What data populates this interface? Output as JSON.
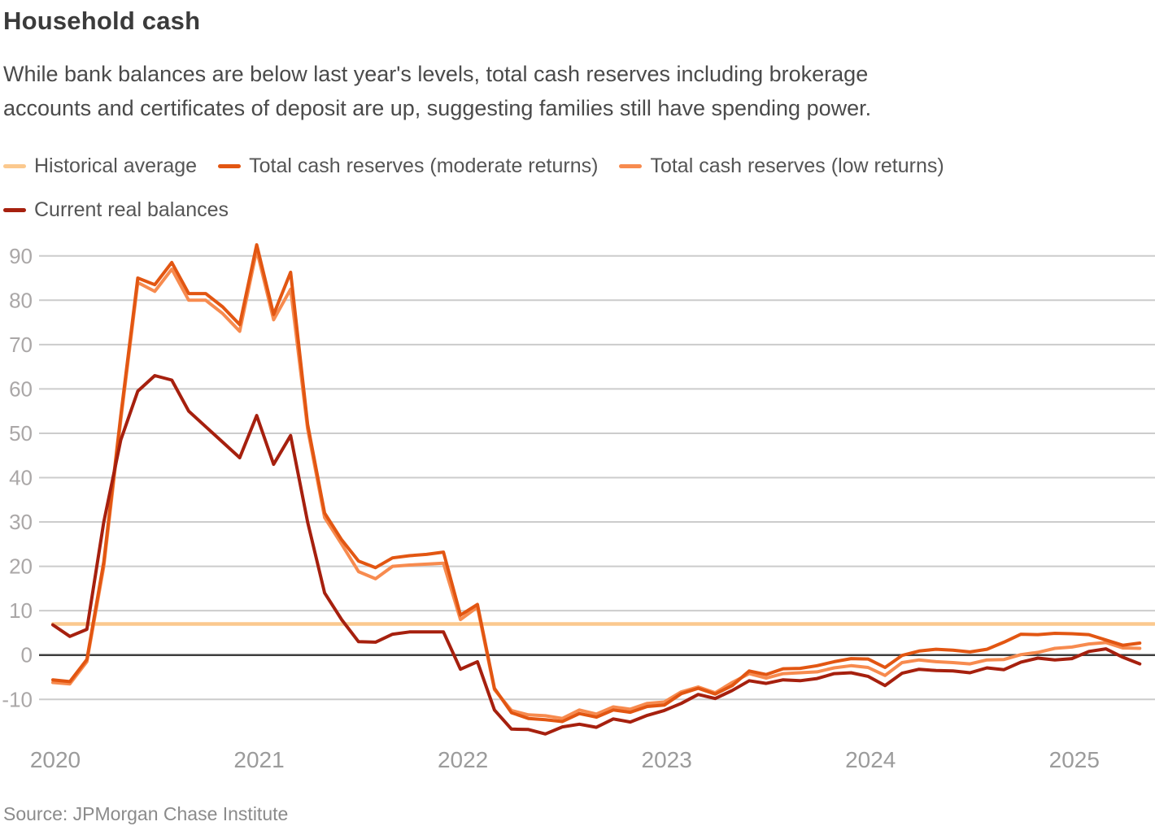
{
  "header": {
    "title": "Household cash",
    "subtitle": "While bank balances are below last year's levels, total cash reserves including brokerage accounts and certificates of deposit are up, suggesting families still have spending power.",
    "subtitle_lines": [
      "While bank balances are below last year's levels, total cash reserves including brokerage",
      "accounts and certificates of deposit are up, suggesting families still have spending power."
    ]
  },
  "legend": {
    "items": [
      {
        "id": "historical_average",
        "label": "Historical average",
        "color": "#fbc98e"
      },
      {
        "id": "moderate",
        "label": "Total cash reserves (moderate returns)",
        "color": "#e25612"
      },
      {
        "id": "low",
        "label": "Total cash reserves (low returns)",
        "color": "#f78b4f"
      },
      {
        "id": "current",
        "label": "Current real balances",
        "color": "#a6200e"
      }
    ]
  },
  "source": "Source: JPMorgan Chase Institute",
  "colors": {
    "gridline": "#cccccc",
    "zero_line": "#3e3e3e",
    "y_tick_text": "#aaa7a7",
    "x_tick_text": "#9b9b9b"
  },
  "chart_data": {
    "type": "line",
    "title": "Household cash",
    "xlabel": "",
    "ylabel": "",
    "grid": "horizontal",
    "legend_position": "top",
    "zero_line": true,
    "ylim": [
      -20,
      95
    ],
    "y_ticks": [
      90,
      80,
      70,
      60,
      50,
      40,
      30,
      20,
      10,
      0,
      -10
    ],
    "x_tick_labels": [
      "2020",
      "2021",
      "2022",
      "2023",
      "2024",
      "2025"
    ],
    "x": [
      "2020-01",
      "2020-02",
      "2020-03",
      "2020-04",
      "2020-05",
      "2020-06",
      "2020-07",
      "2020-08",
      "2020-09",
      "2020-10",
      "2020-11",
      "2020-12",
      "2021-01",
      "2021-02",
      "2021-03",
      "2021-04",
      "2021-05",
      "2021-06",
      "2021-07",
      "2021-08",
      "2021-09",
      "2021-10",
      "2021-11",
      "2021-12",
      "2022-01",
      "2022-02",
      "2022-03",
      "2022-04",
      "2022-05",
      "2022-06",
      "2022-07",
      "2022-08",
      "2022-09",
      "2022-10",
      "2022-11",
      "2022-12",
      "2023-01",
      "2023-02",
      "2023-03",
      "2023-04",
      "2023-05",
      "2023-06",
      "2023-07",
      "2023-08",
      "2023-09",
      "2023-10",
      "2023-11",
      "2023-12",
      "2024-01",
      "2024-02",
      "2024-03",
      "2024-04",
      "2024-05",
      "2024-06",
      "2024-07",
      "2024-08",
      "2024-09",
      "2024-10",
      "2024-11",
      "2024-12",
      "2025-01",
      "2025-02",
      "2025-03",
      "2025-04",
      "2025-05"
    ],
    "series": [
      {
        "id": "historical_average",
        "name": "Historical average",
        "color": "#fbc98e",
        "constant": 7
      },
      {
        "id": "low",
        "name": "Total cash reserves (low returns)",
        "color": "#f78b4f",
        "values": [
          -6.2,
          -6.5,
          -1.5,
          20,
          53,
          84,
          82,
          87,
          80,
          80,
          77,
          73,
          91.3,
          75.6,
          82.5,
          51,
          31,
          25,
          18.8,
          17.2,
          20.0,
          20.3,
          20.5,
          20.7,
          8.0,
          10.8,
          -7.8,
          -12.5,
          -13.5,
          -13.7,
          -14.3,
          -12.4,
          -13.3,
          -11.7,
          -12.2,
          -10.9,
          -10.6,
          -8.3,
          -7.2,
          -8.5,
          -6.2,
          -4.2,
          -5.2,
          -4.2,
          -4.0,
          -3.8,
          -2.9,
          -2.4,
          -2.8,
          -4.6,
          -1.7,
          -1.1,
          -1.5,
          -1.7,
          -2.0,
          -1.1,
          -1.0,
          0.1,
          0.6,
          1.5,
          1.8,
          2.5,
          2.8,
          1.6,
          1.5
        ]
      },
      {
        "id": "moderate",
        "name": "Total cash reserves (moderate returns)",
        "color": "#e25612",
        "values": [
          -5.6,
          -6.0,
          -1.0,
          21,
          54,
          85,
          83.5,
          88.5,
          81.5,
          81.5,
          78.5,
          74.5,
          92.5,
          76.8,
          86.3,
          52,
          32,
          26,
          21.2,
          19.7,
          21.9,
          22.4,
          22.7,
          23.2,
          9.0,
          11.4,
          -7.5,
          -13.0,
          -14.3,
          -14.6,
          -15.0,
          -13.2,
          -14.0,
          -12.4,
          -12.9,
          -11.6,
          -11.3,
          -8.7,
          -7.5,
          -8.8,
          -6.9,
          -3.6,
          -4.4,
          -3.1,
          -3.0,
          -2.4,
          -1.5,
          -0.8,
          -0.9,
          -2.8,
          -0.1,
          0.9,
          1.3,
          1.1,
          0.7,
          1.3,
          2.9,
          4.7,
          4.6,
          4.9,
          4.8,
          4.6,
          3.4,
          2.2,
          2.7
        ]
      },
      {
        "id": "current",
        "name": "Current real balances",
        "color": "#a6200e",
        "values": [
          6.8,
          4.2,
          5.8,
          30,
          48.5,
          59.5,
          63,
          62,
          55,
          51.5,
          48,
          44.5,
          54,
          43,
          49.5,
          30,
          14,
          8,
          3,
          2.9,
          4.7,
          5.2,
          5.2,
          5.2,
          -3.2,
          -1.5,
          -12.4,
          -16.7,
          -16.8,
          -17.8,
          -16.2,
          -15.6,
          -16.3,
          -14.4,
          -15.1,
          -13.6,
          -12.5,
          -10.9,
          -8.9,
          -9.8,
          -8.0,
          -5.8,
          -6.4,
          -5.6,
          -5.8,
          -5.3,
          -4.2,
          -4.0,
          -4.8,
          -6.9,
          -4.1,
          -3.2,
          -3.5,
          -3.6,
          -4.0,
          -2.9,
          -3.3,
          -1.6,
          -0.7,
          -1.1,
          -0.8,
          0.8,
          1.4,
          -0.5,
          -2.0
        ]
      }
    ]
  }
}
